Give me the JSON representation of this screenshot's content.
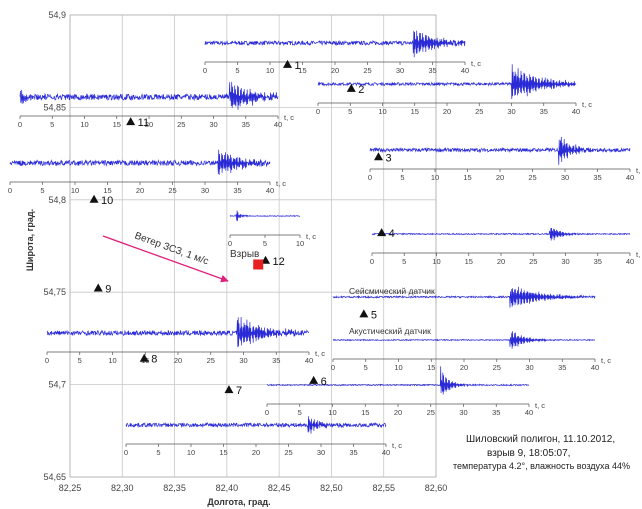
{
  "caption": {
    "line1": "Шиловский полигон, 11.10.2012,",
    "line2": "взрыв 9, 18:05:07,",
    "line3": "температура 4.2°, влажность воздуха 44%"
  },
  "colors": {
    "trace": "#2a2ad6",
    "marker": "#111111",
    "explosion": "#e62020",
    "wind_arrow": "#e0207a",
    "grid": "#c8c8c8",
    "axis_text": "#444444"
  },
  "labels": {
    "explosion": "Взрыв",
    "wind": "Ветер ЗСЗ, 1 м/с",
    "seismic_sensor": "Сейсмический датчик",
    "acoustic_sensor": "Акустический датчик"
  },
  "chart_data": {
    "type": "scatter",
    "title": "",
    "xlabel": "Долгота, град.",
    "ylabel": "Широта, град.",
    "xlim": [
      82.25,
      82.6
    ],
    "ylim": [
      54.65,
      54.9
    ],
    "x_ticks": [
      "82,25",
      "82,30",
      "82,35",
      "82,40",
      "82,45",
      "82,50",
      "82,55",
      "82,60"
    ],
    "y_ticks": [
      "54,65",
      "54,7",
      "54,75",
      "54,8",
      "54,85",
      "54,9"
    ],
    "grid": true,
    "explosion": {
      "lon": 82.43,
      "lat": 54.765,
      "label": "Взрыв"
    },
    "stations": [
      {
        "id": "1",
        "lon": 82.458,
        "lat": 54.873
      },
      {
        "id": "2",
        "lon": 82.519,
        "lat": 54.86
      },
      {
        "id": "3",
        "lon": 82.545,
        "lat": 54.823
      },
      {
        "id": "4",
        "lon": 82.548,
        "lat": 54.782
      },
      {
        "id": "5",
        "lon": 82.531,
        "lat": 54.738
      },
      {
        "id": "6",
        "lon": 82.483,
        "lat": 54.702
      },
      {
        "id": "7",
        "lon": 82.402,
        "lat": 54.697
      },
      {
        "id": "8",
        "lon": 82.321,
        "lat": 54.714
      },
      {
        "id": "9",
        "lon": 82.277,
        "lat": 54.752
      },
      {
        "id": "10",
        "lon": 82.273,
        "lat": 54.8
      },
      {
        "id": "11",
        "lon": 82.308,
        "lat": 54.842
      },
      {
        "id": "12",
        "lon": 82.437,
        "lat": 54.767
      }
    ],
    "seismograms": [
      {
        "name": "1",
        "time_axis_label": "t, с",
        "xlim": [
          0,
          40
        ],
        "ticks": [
          "0",
          "5",
          "10",
          "15",
          "20",
          "25",
          "30",
          "35",
          "40"
        ],
        "onset_s": 32
      },
      {
        "name": "2",
        "time_axis_label": "t, с",
        "xlim": [
          0,
          40
        ],
        "ticks": [
          "0",
          "5",
          "10",
          "15",
          "20",
          "25",
          "30",
          "35",
          "40"
        ],
        "onset_s": 30
      },
      {
        "name": "3",
        "time_axis_label": "t, с",
        "xlim": [
          0,
          40
        ],
        "ticks": [
          "0",
          "5",
          "10",
          "15",
          "20",
          "25",
          "30",
          "35",
          "40"
        ],
        "onset_s": 29
      },
      {
        "name": "4",
        "time_axis_label": "t, с",
        "xlim": [
          0,
          40
        ],
        "ticks": [
          "0",
          "5",
          "10",
          "15",
          "20",
          "25",
          "30",
          "35",
          "40"
        ],
        "onset_s": 27.5
      },
      {
        "name": "5 seismic",
        "time_axis_label": "",
        "xlim": [
          0,
          40
        ],
        "ticks": [],
        "onset_s": 27
      },
      {
        "name": "5 acoustic",
        "time_axis_label": "t, с",
        "xlim": [
          0,
          40
        ],
        "ticks": [
          "0",
          "5",
          "10",
          "15",
          "20",
          "25",
          "30",
          "35",
          "40"
        ],
        "onset_s": 27
      },
      {
        "name": "6",
        "time_axis_label": "t, с",
        "xlim": [
          0,
          40
        ],
        "ticks": [
          "0",
          "5",
          "10",
          "15",
          "20",
          "25",
          "30",
          "35",
          "40"
        ],
        "onset_s": 26.5
      },
      {
        "name": "7",
        "time_axis_label": "t, с",
        "xlim": [
          0,
          40
        ],
        "ticks": [
          "0",
          "5",
          "10",
          "15",
          "20",
          "25",
          "30",
          "35",
          "40"
        ],
        "onset_s": 28
      },
      {
        "name": "8",
        "time_axis_label": "t, с",
        "xlim": [
          0,
          40
        ],
        "ticks": [
          "0",
          "5",
          "10",
          "15",
          "20",
          "25",
          "30",
          "35",
          "40"
        ],
        "onset_s": 29
      },
      {
        "name": "10",
        "time_axis_label": "t, с",
        "xlim": [
          0,
          40
        ],
        "ticks": [
          "0",
          "5",
          "10",
          "15",
          "20",
          "25",
          "30",
          "35",
          "40"
        ],
        "onset_s": 32
      },
      {
        "name": "11",
        "time_axis_label": "t, с",
        "xlim": [
          0,
          40
        ],
        "ticks": [
          "0",
          "5",
          "10",
          "15",
          "20",
          "25",
          "30",
          "35",
          "40"
        ],
        "onset_s": 32.5
      },
      {
        "name": "12",
        "time_axis_label": "t, с",
        "xlim": [
          0,
          10
        ],
        "ticks": [
          "0",
          "5",
          "10"
        ],
        "onset_s": 0.8
      }
    ]
  }
}
